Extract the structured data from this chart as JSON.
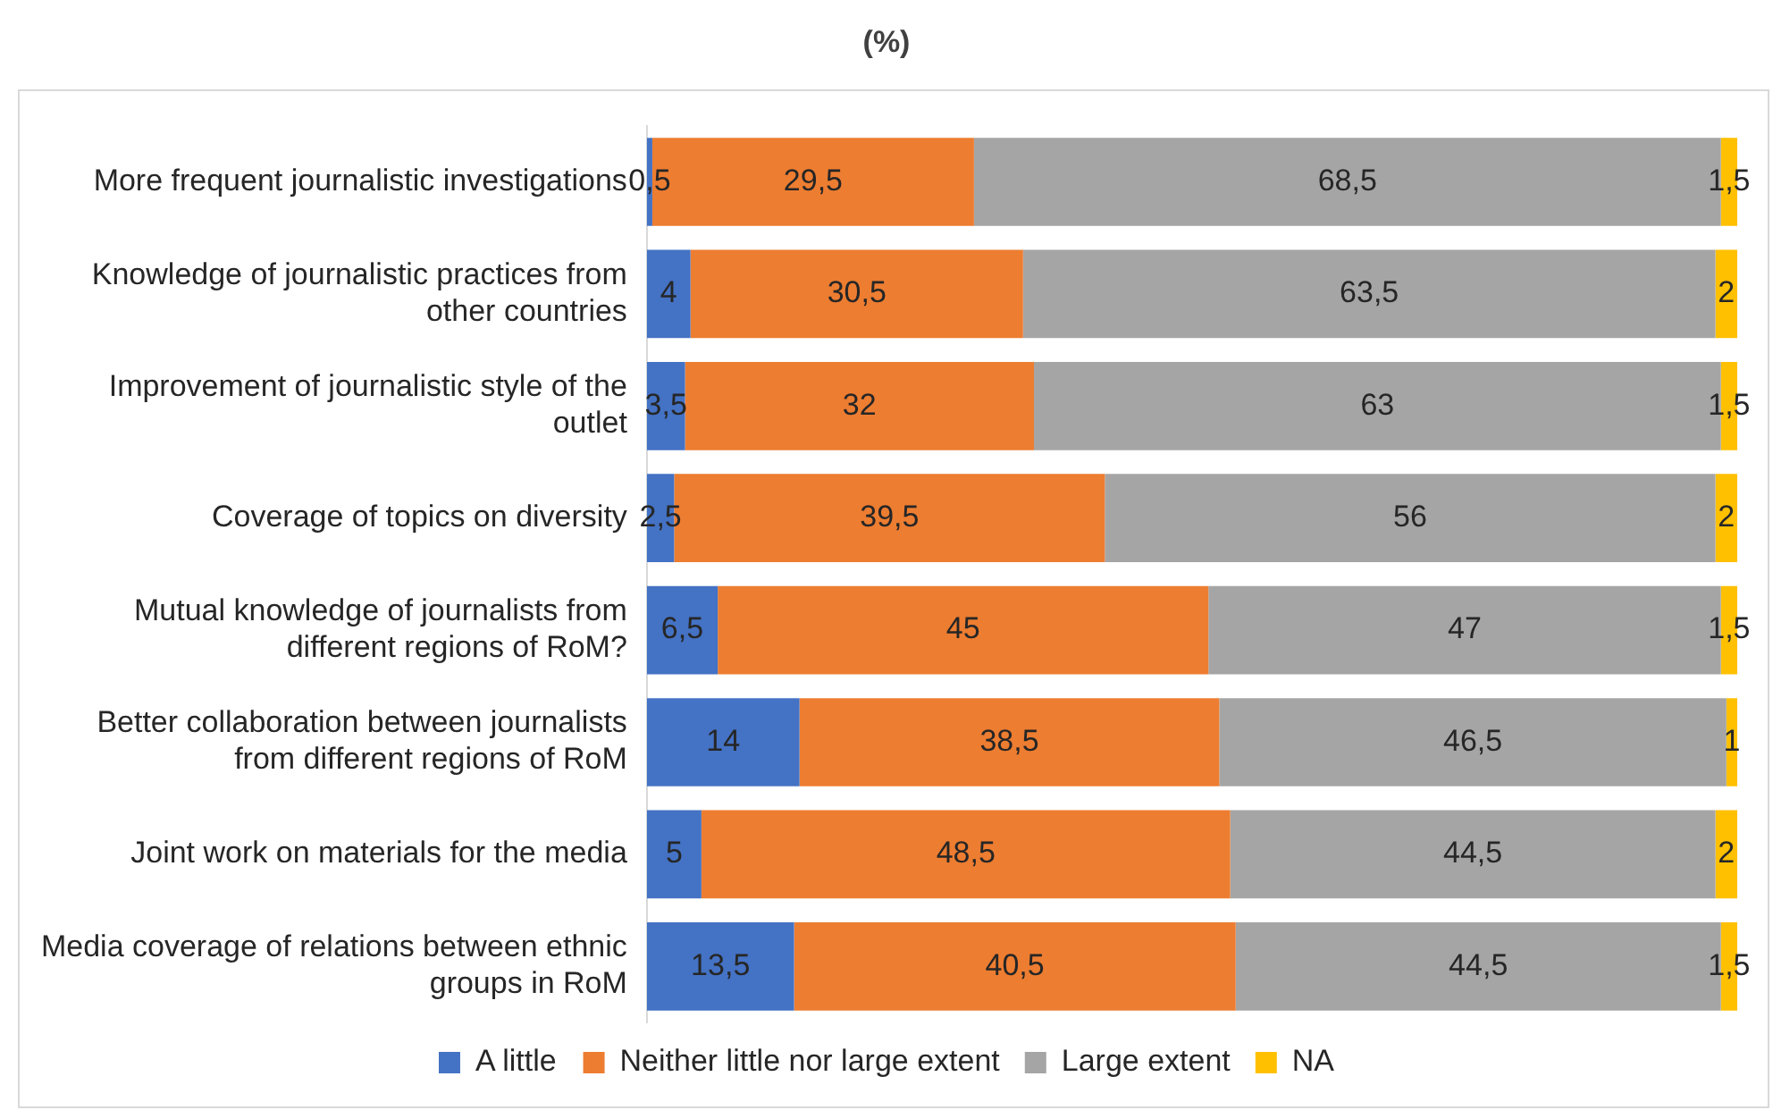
{
  "chart_data": {
    "type": "bar",
    "title": "(%)",
    "orientation": "horizontal",
    "stacked": true,
    "categories": [
      "More frequent journalistic investigations",
      "Knowledge of journalistic practices from other countries",
      "Improvement of journalistic style of the outlet",
      "Coverage of topics on diversity",
      "Mutual knowledge of journalists from different regions of RoM?",
      "Better collaboration between journalists from different regions of RoM",
      "Joint work on materials for the media",
      "Media coverage of relations between ethnic groups in RoM"
    ],
    "series": [
      {
        "name": "A little",
        "color": "#4472c4",
        "values": [
          0.5,
          4,
          3.5,
          2.5,
          6.5,
          14,
          5,
          13.5
        ],
        "value_labels": [
          "0,5",
          "4",
          "3,5",
          "2,5",
          "6,5",
          "14",
          "5",
          "13,5"
        ]
      },
      {
        "name": "Neither little nor large extent",
        "color": "#ed7d31",
        "values": [
          29.5,
          30.5,
          32,
          39.5,
          45,
          38.5,
          48.5,
          40.5
        ],
        "value_labels": [
          "29,5",
          "30,5",
          "32",
          "39,5",
          "45",
          "38,5",
          "48,5",
          "40,5"
        ]
      },
      {
        "name": "Large extent",
        "color": "#a5a5a5",
        "values": [
          68.5,
          63.5,
          63,
          56,
          47,
          46.5,
          44.5,
          44.5
        ],
        "value_labels": [
          "68,5",
          "63,5",
          "63",
          "56",
          "47",
          "46,5",
          "44,5",
          "44,5"
        ]
      },
      {
        "name": "NA",
        "color": "#ffc000",
        "values": [
          1.5,
          2,
          1.5,
          2,
          1.5,
          1,
          2,
          1.5
        ],
        "value_labels": [
          "1,5",
          "2",
          "1,5",
          "2",
          "1,5",
          "1",
          "2",
          "1,5"
        ]
      }
    ],
    "tick_labels": "y",
    "legend": "bottom"
  }
}
